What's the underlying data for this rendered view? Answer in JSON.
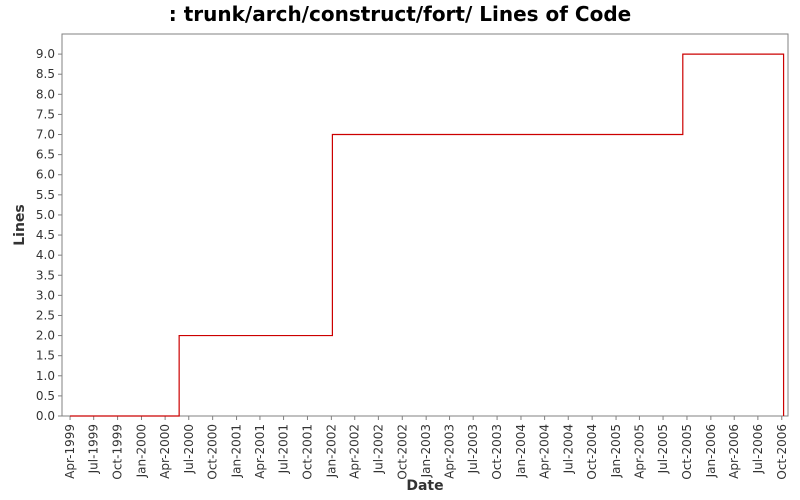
{
  "chart_data": {
    "type": "line",
    "step": true,
    "title": ": trunk/arch/construct/fort/ Lines of Code",
    "xlabel": "Date",
    "ylabel": "Lines",
    "xlim": [
      "1999-03-01",
      "2006-10-25"
    ],
    "ylim": [
      0,
      9.5
    ],
    "grid": false,
    "legend": "none",
    "x_ticks": [
      "Apr-1999",
      "Jul-1999",
      "Oct-1999",
      "Jan-2000",
      "Apr-2000",
      "Jul-2000",
      "Oct-2000",
      "Jan-2001",
      "Apr-2001",
      "Jul-2001",
      "Oct-2001",
      "Jan-2002",
      "Apr-2002",
      "Jul-2002",
      "Oct-2002",
      "Jan-2003",
      "Apr-2003",
      "Jul-2003",
      "Oct-2003",
      "Jan-2004",
      "Apr-2004",
      "Jul-2004",
      "Oct-2004",
      "Jan-2005",
      "Apr-2005",
      "Jul-2005",
      "Oct-2005",
      "Jan-2006",
      "Apr-2006",
      "Jul-2006",
      "Oct-2006"
    ],
    "y_ticks": [
      "0.0",
      "0.5",
      "1.0",
      "1.5",
      "2.0",
      "2.5",
      "3.0",
      "3.5",
      "4.0",
      "4.5",
      "5.0",
      "5.5",
      "6.0",
      "6.5",
      "7.0",
      "7.5",
      "8.0",
      "8.5",
      "9.0"
    ],
    "series": [
      {
        "color": "#cc0000",
        "points": [
          {
            "x": "1999-04-01",
            "y": 0
          },
          {
            "x": "2000-05-25",
            "y": 2
          },
          {
            "x": "2002-01-05",
            "y": 7
          },
          {
            "x": "2005-09-15",
            "y": 9
          },
          {
            "x": "2006-10-08",
            "y": 0
          }
        ]
      }
    ]
  },
  "colors": {
    "frame": "#808080",
    "text": "#333333",
    "line": "#cc0000"
  }
}
